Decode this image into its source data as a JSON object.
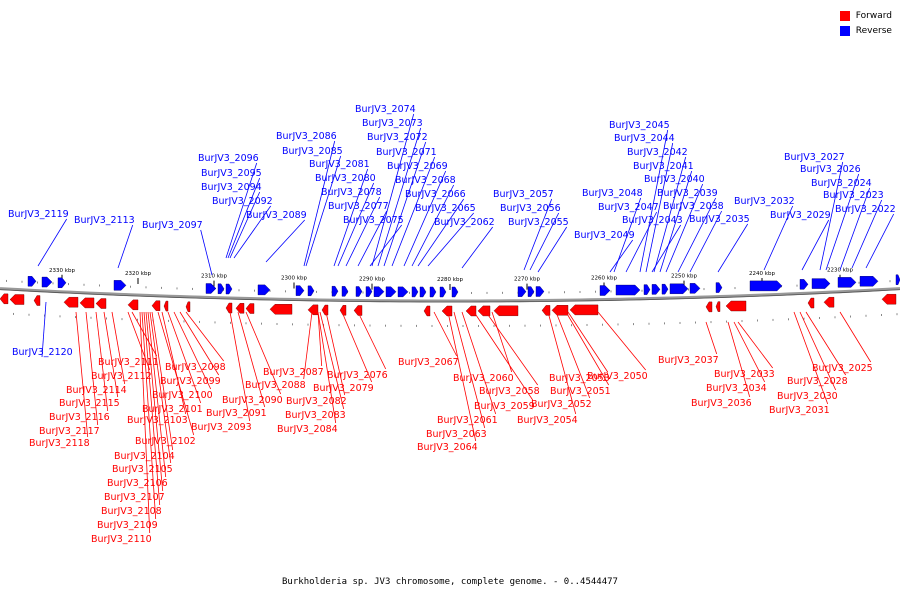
{
  "legend": {
    "forward_label": "Forward",
    "reverse_label": "Reverse",
    "forward_color": "#ff0000",
    "reverse_color": "#0000ff"
  },
  "caption": "Burkholderia sp. JV3 chromosome, complete genome. - 0..4544477",
  "colors": {
    "forward": "#ff0000",
    "reverse": "#0000ff",
    "backbone": "#999999"
  },
  "scale_labels": [
    "2330 kbp",
    "2320 kbp",
    "2310 kbp",
    "2300 kbp",
    "2290 kbp",
    "2280 kbp",
    "2270 kbp",
    "2260 kbp",
    "2250 kbp",
    "2240 kbp",
    "2230 kbp"
  ],
  "reverse_genes": [
    "BurJV3_2119",
    "BurJV3_2113",
    "BurJV3_2097",
    "BurJV3_2096",
    "BurJV3_2095",
    "BurJV3_2094",
    "BurJV3_2092",
    "BurJV3_2089",
    "BurJV3_2086",
    "BurJV3_2085",
    "BurJV3_2081",
    "BurJV3_2080",
    "BurJV3_2078",
    "BurJV3_2077",
    "BurJV3_2075",
    "BurJV3_2074",
    "BurJV3_2073",
    "BurJV3_2072",
    "BurJV3_2071",
    "BurJV3_2069",
    "BurJV3_2068",
    "BurJV3_2066",
    "BurJV3_2065",
    "BurJV3_2062",
    "BurJV3_2057",
    "BurJV3_2056",
    "BurJV3_2055",
    "BurJV3_2049",
    "BurJV3_2048",
    "BurJV3_2047",
    "BurJV3_2045",
    "BurJV3_2044",
    "BurJV3_2043",
    "BurJV3_2042",
    "BurJV3_2041",
    "BurJV3_2040",
    "BurJV3_2039",
    "BurJV3_2038",
    "BurJV3_2035",
    "BurJV3_2032",
    "BurJV3_2029",
    "BurJV3_2027",
    "BurJV3_2026",
    "BurJV3_2024",
    "BurJV3_2023",
    "BurJV3_2022",
    "BurJV3_2120"
  ],
  "forward_genes": [
    "BurJV3_2111",
    "BurJV3_2112",
    "BurJV3_2114",
    "BurJV3_2115",
    "BurJV3_2116",
    "BurJV3_2117",
    "BurJV3_2118",
    "BurJV3_2098",
    "BurJV3_2099",
    "BurJV3_2100",
    "BurJV3_2101",
    "BurJV3_2103",
    "BurJV3_2102",
    "BurJV3_2104",
    "BurJV3_2105",
    "BurJV3_2106",
    "BurJV3_2107",
    "BurJV3_2108",
    "BurJV3_2109",
    "BurJV3_2110",
    "BurJV3_2090",
    "BurJV3_2091",
    "BurJV3_2093",
    "BurJV3_2087",
    "BurJV3_2088",
    "BurJV3_2082",
    "BurJV3_2083",
    "BurJV3_2084",
    "BurJV3_2079",
    "BurJV3_2076",
    "BurJV3_2067",
    "BurJV3_2061",
    "BurJV3_2063",
    "BurJV3_2064",
    "BurJV3_2060",
    "BurJV3_2058",
    "BurJV3_2059",
    "BurJV3_2053",
    "BurJV3_2051",
    "BurJV3_2052",
    "BurJV3_2054",
    "BurJV3_2050",
    "BurJV3_2037",
    "BurJV3_2033",
    "BurJV3_2034",
    "BurJV3_2036",
    "BurJV3_2025",
    "BurJV3_2028",
    "BurJV3_2030",
    "BurJV3_2031"
  ]
}
